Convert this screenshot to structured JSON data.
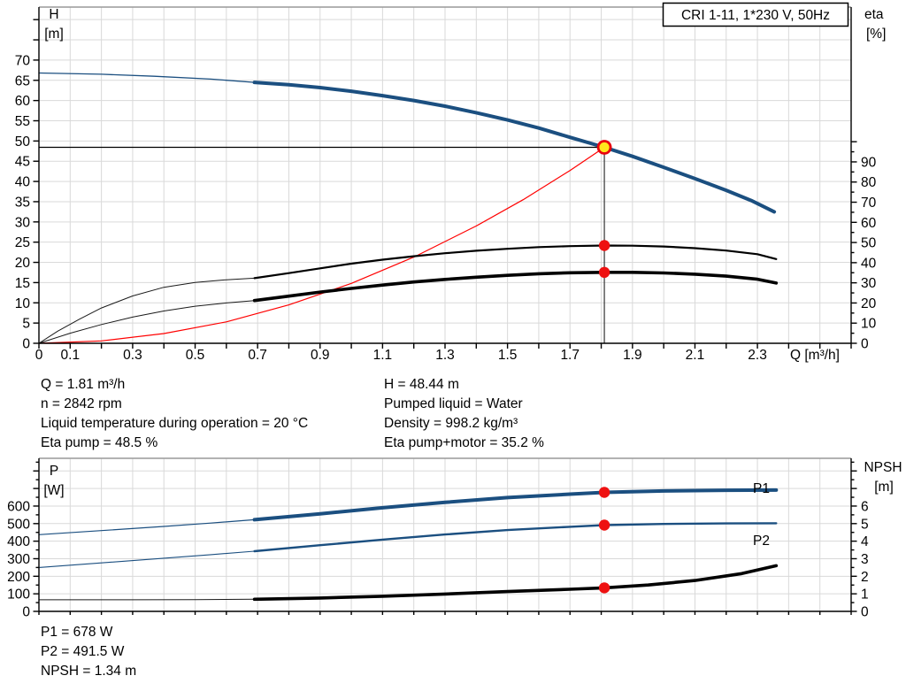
{
  "title_box": "CRI 1-11, 1*230 V, 50Hz",
  "colors": {
    "curve_blue": "#1b4f80",
    "label_blue": "#1d5fa8",
    "curve_red": "#ff0000",
    "marker_red": "#ee1111",
    "duty_fill": "#ffe71c",
    "duty_ring": "#e8000d",
    "grid": "#d9d9d9",
    "frame_top": "#999999",
    "axis": "#000000"
  },
  "labels": {
    "h": "H",
    "h_unit": "[m]",
    "eta": "eta",
    "eta_unit": "[%]",
    "q": "Q [m³/h]",
    "p": "P",
    "p_unit": "[W]",
    "npsh": "NPSH",
    "npsh_unit": "[m]",
    "p1": "P1",
    "p2": "P2"
  },
  "captions": {
    "left": [
      "Q = 1.81 m³/h",
      "n = 2842 rpm",
      "Liquid temperature during operation = 20 °C",
      "Eta pump = 48.5 %"
    ],
    "right": [
      "H = 48.44 m",
      "Pumped liquid = Water",
      "Density = 998.2 kg/m³",
      "Eta pump+motor = 35.2 %"
    ],
    "bottom": [
      "P1 = 678 W",
      "P2 = 491.5 W",
      "NPSH = 1.34 m"
    ]
  },
  "chart_data": [
    {
      "type": "line",
      "id": "head-efficiency-chart",
      "x_axis": {
        "label": "Q [m³/h]",
        "min": 0,
        "max": 2.6,
        "tick_step": 0.1,
        "labeled_ticks": [
          "0",
          "0.1",
          "0.3",
          "0.5",
          "0.7",
          "0.9",
          "1.1",
          "1.3",
          "1.5",
          "1.7",
          "1.9",
          "2.1",
          "2.3"
        ]
      },
      "left_axis": {
        "label": "H",
        "unit": "[m]",
        "min": 0,
        "max": 83.1,
        "tick_step": 5,
        "tick_max": 80,
        "label_step": 5,
        "label_max": 70
      },
      "right_axis": {
        "label": "eta",
        "unit": "[%]",
        "min": 0,
        "max": 166.8,
        "tick_step": 5,
        "tick_max": 100,
        "label_step": 10,
        "label_max": 90
      },
      "grid": true,
      "series": [
        {
          "name": "pump-curve-thin",
          "axis": "left",
          "color": "#1b4f80",
          "width": 1.3,
          "points": [
            [
              0,
              66.8
            ],
            [
              0.2,
              66.5
            ],
            [
              0.37,
              66.0
            ],
            [
              0.55,
              65.3
            ],
            [
              0.69,
              64.5
            ]
          ]
        },
        {
          "name": "pump-curve",
          "axis": "left",
          "color": "#1b4f80",
          "width": 4,
          "points": [
            [
              0.69,
              64.5
            ],
            [
              0.8,
              63.9
            ],
            [
              0.9,
              63.2
            ],
            [
              1.0,
              62.3
            ],
            [
              1.1,
              61.2
            ],
            [
              1.2,
              60.0
            ],
            [
              1.3,
              58.6
            ],
            [
              1.4,
              57.0
            ],
            [
              1.5,
              55.2
            ],
            [
              1.6,
              53.2
            ],
            [
              1.7,
              50.9
            ],
            [
              1.81,
              48.44
            ],
            [
              1.9,
              46.2
            ],
            [
              2.0,
              43.5
            ],
            [
              2.1,
              40.7
            ],
            [
              2.2,
              37.8
            ],
            [
              2.28,
              35.3
            ],
            [
              2.354,
              32.5
            ]
          ]
        },
        {
          "name": "system-curve",
          "axis": "left",
          "color": "#ff0000",
          "width": 1.2,
          "points": [
            [
              0,
              0
            ],
            [
              0.2,
              0.6
            ],
            [
              0.4,
              2.4
            ],
            [
              0.6,
              5.3
            ],
            [
              0.8,
              9.5
            ],
            [
              1.0,
              14.8
            ],
            [
              1.2,
              21.3
            ],
            [
              1.4,
              29.0
            ],
            [
              1.55,
              35.5
            ],
            [
              1.7,
              42.7
            ],
            [
              1.81,
              48.44
            ]
          ]
        },
        {
          "name": "eta-pump-thin",
          "axis": "right",
          "color": "#1a1a1a",
          "width": 1,
          "points": [
            [
              0,
              0
            ],
            [
              0.06,
              6
            ],
            [
              0.13,
              12
            ],
            [
              0.2,
              17.5
            ],
            [
              0.3,
              23.5
            ],
            [
              0.4,
              27.8
            ],
            [
              0.5,
              30.2
            ],
            [
              0.6,
              31.5
            ],
            [
              0.69,
              32.3
            ]
          ]
        },
        {
          "name": "eta-pump",
          "axis": "right",
          "color": "#000000",
          "width": 2.2,
          "points": [
            [
              0.69,
              32.3
            ],
            [
              0.8,
              34.8
            ],
            [
              0.9,
              37.2
            ],
            [
              1.0,
              39.5
            ],
            [
              1.1,
              41.5
            ],
            [
              1.2,
              43.2
            ],
            [
              1.3,
              44.7
            ],
            [
              1.4,
              45.9
            ],
            [
              1.5,
              46.9
            ],
            [
              1.6,
              47.7
            ],
            [
              1.7,
              48.2
            ],
            [
              1.81,
              48.5
            ],
            [
              1.9,
              48.4
            ],
            [
              2.0,
              48.0
            ],
            [
              2.1,
              47.2
            ],
            [
              2.2,
              46.0
            ],
            [
              2.3,
              44.2
            ],
            [
              2.36,
              41.8
            ]
          ]
        },
        {
          "name": "eta-pump-motor-thin",
          "axis": "right",
          "color": "#1a1a1a",
          "width": 1,
          "points": [
            [
              0,
              0
            ],
            [
              0.1,
              5
            ],
            [
              0.2,
              9.3
            ],
            [
              0.3,
              13.0
            ],
            [
              0.4,
              16.0
            ],
            [
              0.5,
              18.4
            ],
            [
              0.6,
              20.0
            ],
            [
              0.69,
              21.2
            ]
          ]
        },
        {
          "name": "eta-pump-motor",
          "axis": "right",
          "color": "#000000",
          "width": 3.6,
          "points": [
            [
              0.69,
              21.2
            ],
            [
              0.8,
              23.4
            ],
            [
              0.9,
              25.4
            ],
            [
              1.0,
              27.2
            ],
            [
              1.1,
              28.9
            ],
            [
              1.2,
              30.4
            ],
            [
              1.3,
              31.7
            ],
            [
              1.4,
              32.8
            ],
            [
              1.5,
              33.7
            ],
            [
              1.6,
              34.5
            ],
            [
              1.7,
              35.0
            ],
            [
              1.81,
              35.2
            ],
            [
              1.9,
              35.2
            ],
            [
              2.0,
              34.9
            ],
            [
              2.1,
              34.3
            ],
            [
              2.2,
              33.3
            ],
            [
              2.3,
              31.8
            ],
            [
              2.36,
              29.9
            ]
          ]
        }
      ],
      "duty_point": {
        "q": 1.81,
        "h": 48.44
      },
      "markers": [
        {
          "q": 1.81,
          "v": 48.5,
          "axis": "right"
        },
        {
          "q": 1.81,
          "v": 35.2,
          "axis": "right"
        }
      ]
    },
    {
      "type": "line",
      "id": "power-npsh-chart",
      "x_axis": {
        "label": "",
        "min": 0,
        "max": 2.6,
        "tick_step": 0.1,
        "labeled_ticks": []
      },
      "left_axis": {
        "label": "P",
        "unit": "[W]",
        "min": 0,
        "max": 872,
        "tick_step": 50,
        "tick_max": 850,
        "label_step": 100,
        "label_max": 600
      },
      "right_axis": {
        "label": "NPSH",
        "unit": "[m]",
        "min": 0,
        "max": 8.72,
        "tick_step": 0.5,
        "tick_max": 8.5,
        "label_step": 1,
        "label_max": 6
      },
      "grid": true,
      "series": [
        {
          "name": "p1-curve-thin",
          "axis": "left",
          "color": "#1b4f80",
          "width": 1.2,
          "points": [
            [
              0,
              437
            ],
            [
              0.2,
              460
            ],
            [
              0.4,
              484
            ],
            [
              0.55,
              503
            ],
            [
              0.69,
              522
            ]
          ]
        },
        {
          "name": "p1-curve",
          "axis": "left",
          "color": "#1b4f80",
          "width": 4,
          "points": [
            [
              0.69,
              522
            ],
            [
              0.9,
              556
            ],
            [
              1.1,
              590
            ],
            [
              1.3,
              621
            ],
            [
              1.5,
              648
            ],
            [
              1.7,
              668
            ],
            [
              1.81,
              678
            ],
            [
              2.0,
              686
            ],
            [
              2.2,
              690
            ],
            [
              2.36,
              691
            ]
          ]
        },
        {
          "name": "p2-curve-thin",
          "axis": "left",
          "color": "#1b4f80",
          "width": 1.1,
          "points": [
            [
              0,
              250
            ],
            [
              0.2,
              276
            ],
            [
              0.4,
              303
            ],
            [
              0.55,
              323
            ],
            [
              0.69,
              343
            ]
          ]
        },
        {
          "name": "p2-curve",
          "axis": "left",
          "color": "#1b4f80",
          "width": 2.4,
          "points": [
            [
              0.69,
              343
            ],
            [
              0.9,
              377
            ],
            [
              1.1,
              409
            ],
            [
              1.3,
              438
            ],
            [
              1.5,
              463
            ],
            [
              1.7,
              482
            ],
            [
              1.81,
              491.5
            ],
            [
              2.0,
              498
            ],
            [
              2.2,
              501
            ],
            [
              2.36,
              502
            ]
          ]
        },
        {
          "name": "npsh-curve-thin",
          "axis": "right",
          "color": "#1a1a1a",
          "width": 1,
          "points": [
            [
              0,
              0.66
            ],
            [
              0.3,
              0.66
            ],
            [
              0.5,
              0.67
            ],
            [
              0.69,
              0.69
            ]
          ]
        },
        {
          "name": "npsh-curve",
          "axis": "right",
          "color": "#000000",
          "width": 3.6,
          "points": [
            [
              0.69,
              0.69
            ],
            [
              0.9,
              0.76
            ],
            [
              1.1,
              0.86
            ],
            [
              1.3,
              0.99
            ],
            [
              1.5,
              1.13
            ],
            [
              1.7,
              1.26
            ],
            [
              1.81,
              1.34
            ],
            [
              1.95,
              1.5
            ],
            [
              2.1,
              1.76
            ],
            [
              2.25,
              2.15
            ],
            [
              2.36,
              2.6
            ]
          ]
        }
      ],
      "markers": [
        {
          "q": 1.81,
          "v": 678,
          "axis": "left"
        },
        {
          "q": 1.81,
          "v": 491.5,
          "axis": "left"
        },
        {
          "q": 1.81,
          "v": 1.34,
          "axis": "right"
        }
      ]
    }
  ]
}
